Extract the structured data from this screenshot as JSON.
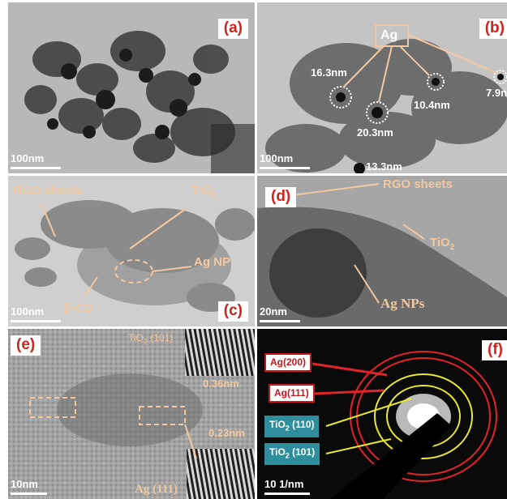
{
  "panels": {
    "a": {
      "tag": "(a)",
      "scale": "100nm"
    },
    "b": {
      "tag": "(b)",
      "scale": "100nm",
      "label_ag": "Ag",
      "sizes": [
        "16.3nm",
        "10.4nm",
        "7.9nm",
        "20.3nm",
        "13.3nm"
      ]
    },
    "c": {
      "tag": "(c)",
      "scale": "100nm",
      "label_rgo": "RGO sheets",
      "label_tio2": "TiO",
      "label_tio2_sub": "2",
      "label_agnp": "Ag NP",
      "label_cd": "β-CD"
    },
    "d": {
      "tag": "(d)",
      "scale": "20nm",
      "label_rgo": "RGO sheets",
      "label_tio2": "TiO",
      "label_tio2_sub": "2",
      "label_agnps": "Ag NPs"
    },
    "e": {
      "tag": "(e)",
      "scale": "10nm",
      "fringe_top": "TiO",
      "fringe_top_sub": "2",
      "fringe_top_plane": " (101)",
      "d1": "0.36nm",
      "d2": "0.23nm",
      "fringe_bottom": "Ag (111)"
    },
    "f": {
      "tag": "(f)",
      "scale": "10 1/nm",
      "ring_ag200": "Ag(200)",
      "ring_ag111": "Ag(111)",
      "ring_tio110": "TiO",
      "ring_tio110_sub": "2",
      "ring_tio110_plane": " (110)",
      "ring_tio101": "TiO",
      "ring_tio101_sub": "2",
      "ring_tio101_plane": " (101)"
    }
  },
  "colors": {
    "tag_text": "#d0211c",
    "annotation": "#f2c8a0",
    "ring_red": "#e0242a",
    "ring_yellow": "#e8e830",
    "teal_box": "#2f8e9c"
  }
}
